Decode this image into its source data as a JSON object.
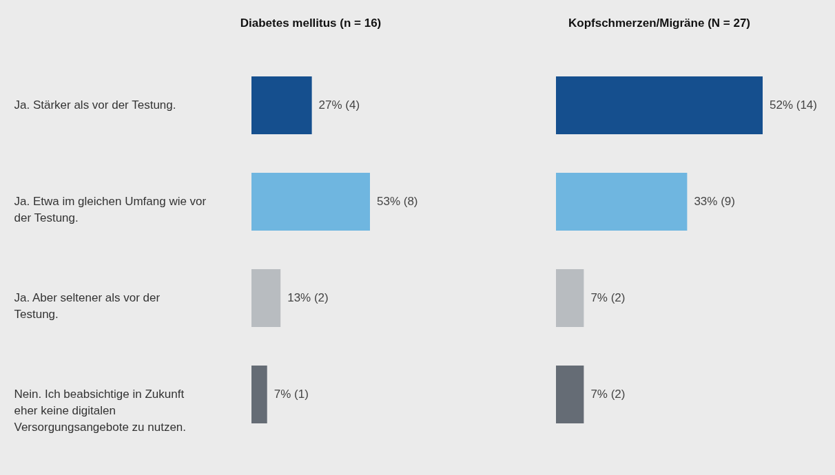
{
  "chart_data": [
    {
      "type": "bar",
      "orientation": "horizontal",
      "title": "Diabetes mellitus (n = 16)",
      "categories": [
        "Ja. Stärker als vor der Testung.",
        "Ja. Etwa im gleichen Umfang wie vor der Testung.",
        "Ja. Aber seltener als vor der Testung.",
        "Nein. Ich beabsichtige in Zukunft eher keine digitalen Versorgungsangebote zu nutzen."
      ],
      "values": [
        27,
        53,
        13,
        7
      ],
      "colors": [
        "#154f8e",
        "#6fb6e0",
        "#b8bcc0",
        "#656c75"
      ],
      "value_labels": [
        "27% (4)",
        "53% (8)",
        "13% (2)",
        "7% (1)"
      ],
      "tick_labels": "y"
    },
    {
      "type": "bar",
      "orientation": "horizontal",
      "title": "Kopfschmerzen/Migräne (N = 27)",
      "categories": [
        null,
        null,
        null,
        null
      ],
      "values": [
        52,
        33,
        7,
        7
      ],
      "colors": [
        "#154f8e",
        "#6fb6e0",
        "#b8bcc0",
        "#656c75"
      ],
      "value_labels": [
        "52% (14)",
        "33% (9)",
        "7% (2)",
        "7% (2)"
      ],
      "tick_labels": false
    }
  ]
}
